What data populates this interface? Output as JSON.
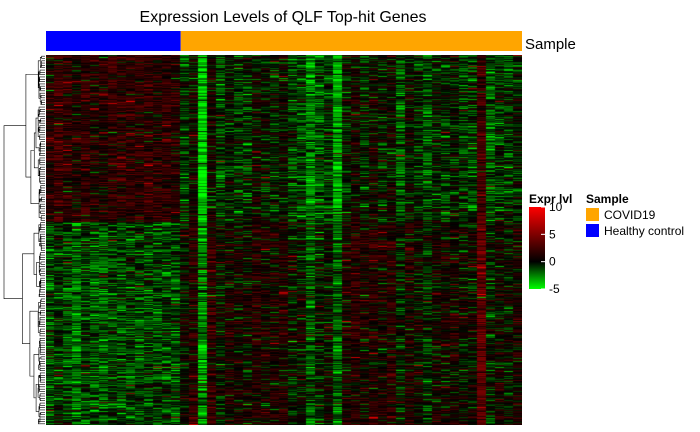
{
  "chart_data": {
    "type": "heatmap",
    "title": "Expression Levels of QLF Top-hit Genes",
    "annotation_track_label": "Sample",
    "samples": {
      "groups": [
        {
          "name": "Healthy control",
          "count": 15
        },
        {
          "name": "COVID19",
          "count": 38
        }
      ]
    },
    "gene_clusters": [
      {
        "name": "",
        "pattern": "up in Healthy control",
        "row_fraction": 0.45
      },
      {
        "name": "",
        "pattern": "up in COVID19",
        "row_fraction": 0.55
      }
    ],
    "color_scale": {
      "title": "Expr lvl",
      "min": -5,
      "max": 10,
      "ticks": [
        10,
        5,
        0,
        -5
      ],
      "low_color": "#00ff00",
      "mid_color": "#000000",
      "high_color": "#ff0000"
    },
    "legend": {
      "title": "Sample",
      "placement": "right",
      "entries": [
        {
          "label": "COVID19",
          "color": "#ffa500"
        },
        {
          "label": "Healthy control",
          "color": "#0000ff"
        }
      ]
    },
    "row_dendrogram": true,
    "grid": false
  }
}
